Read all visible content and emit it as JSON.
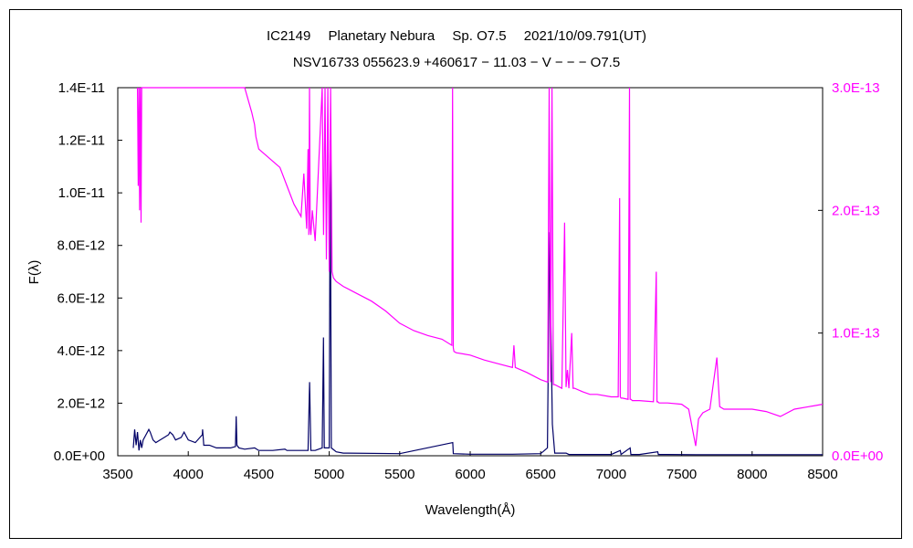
{
  "chart_data": {
    "type": "line",
    "title": "IC2149　 Planetary Nebura　 Sp. O7.5　 2021/10/09.791(UT)",
    "subtitle": "NSV16733 055623.9 +460617 − 11.03 − V − − − O7.5",
    "xlabel": "Wavelength(Å)",
    "ylabel": "F(λ)",
    "xlim": [
      3500,
      8500
    ],
    "ylim_left": [
      0,
      1.4e-11
    ],
    "ylim_right": [
      0,
      3e-13
    ],
    "x_ticks": [
      "3500",
      "4000",
      "4500",
      "5000",
      "5500",
      "6000",
      "6500",
      "7000",
      "7500",
      "8000",
      "8500"
    ],
    "y_left_ticks": [
      "0.0E+00",
      "2.0E-12",
      "4.0E-12",
      "6.0E-12",
      "8.0E-12",
      "1.0E-11",
      "1.2E-11",
      "1.4E-11"
    ],
    "y_right_ticks": [
      "0.0E+00",
      "1.0E-13",
      "2.0E-13",
      "3.0E-13"
    ],
    "grid": false,
    "series": [
      {
        "axis": "left",
        "color": "#000066",
        "x": [
          3610,
          3620,
          3630,
          3640,
          3650,
          3660,
          3670,
          3680,
          3700,
          3720,
          3730,
          3750,
          3770,
          3800,
          3830,
          3860,
          3870,
          3890,
          3910,
          3950,
          3970,
          4000,
          4050,
          4100,
          4102,
          4110,
          4150,
          4200,
          4300,
          4335,
          4340,
          4345,
          4360,
          4400,
          4471,
          4500,
          4600,
          4686,
          4700,
          4800,
          4850,
          4861,
          4870,
          4900,
          4950,
          4959,
          4965,
          5000,
          5007,
          5015,
          5050,
          5100,
          5500,
          5876,
          5880,
          6000,
          6300,
          6500,
          6548,
          6563,
          6583,
          6600,
          6680,
          6700,
          7000,
          7065,
          7070,
          7135,
          7140,
          7200,
          7330,
          7335,
          7400,
          7600,
          7800,
          8000,
          8200,
          8500
        ],
        "y": [
          3e-13,
          1e-12,
          4e-13,
          9e-13,
          2e-13,
          6e-13,
          3e-13,
          6e-13,
          8e-13,
          1e-12,
          9e-13,
          6e-13,
          5e-13,
          6e-13,
          7e-13,
          8e-13,
          9e-13,
          8e-13,
          6e-13,
          7e-13,
          9e-13,
          6e-13,
          5e-13,
          8e-13,
          1e-12,
          4e-13,
          4e-13,
          3e-13,
          3e-13,
          3.5e-13,
          1.5e-12,
          4e-13,
          3e-13,
          2.5e-13,
          3e-13,
          2e-13,
          2e-13,
          2.5e-13,
          2e-13,
          2e-13,
          2e-13,
          2.8e-12,
          2e-13,
          2e-13,
          3e-13,
          4.5e-12,
          3e-13,
          3e-13,
          1.2e-11,
          3e-13,
          1.5e-13,
          1e-13,
          8e-14,
          5e-13,
          8e-14,
          6e-14,
          6e-14,
          8e-14,
          3e-13,
          8.5e-12,
          1.2e-12,
          1e-13,
          1e-13,
          5e-14,
          5e-14,
          2e-13,
          5e-14,
          3e-13,
          5e-14,
          5e-14,
          1.5e-13,
          5e-14,
          5e-14,
          4e-14,
          4e-14,
          4e-14,
          4e-14,
          4e-14
        ]
      },
      {
        "axis": "right",
        "color": "#ff00ff",
        "x": [
          3640,
          3645,
          3650,
          3655,
          3660,
          3665,
          3670,
          4400,
          4450,
          4470,
          4480,
          4500,
          4600,
          4650,
          4700,
          4750,
          4800,
          4820,
          4840,
          4850,
          4855,
          4860,
          4865,
          4870,
          4880,
          4900,
          4950,
          4960,
          4970,
          4980,
          4990,
          5000,
          5010,
          5020,
          5030,
          5050,
          5100,
          5200,
          5300,
          5400,
          5500,
          5600,
          5700,
          5800,
          5870,
          5875,
          5880,
          5885,
          5900,
          6000,
          6100,
          6200,
          6300,
          6310,
          6320,
          6400,
          6500,
          6550,
          6560,
          6570,
          6580,
          6590,
          6600,
          6650,
          6670,
          6680,
          6690,
          6700,
          6720,
          6730,
          6740,
          6800,
          6850,
          6900,
          7000,
          7050,
          7060,
          7065,
          7070,
          7080,
          7120,
          7130,
          7135,
          7140,
          7150,
          7200,
          7300,
          7320,
          7325,
          7330,
          7340,
          7400,
          7500,
          7550,
          7600,
          7620,
          7650,
          7700,
          7750,
          7760,
          7770,
          7800,
          7900,
          8000,
          8100,
          8200,
          8300,
          8400,
          8500
        ],
        "y": [
          3e-13,
          2.2e-13,
          3e-13,
          2e-13,
          3e-13,
          1.9e-13,
          3e-13,
          3e-13,
          2.8e-13,
          2.7e-13,
          2.6e-13,
          2.5e-13,
          2.4e-13,
          2.35e-13,
          2.2e-13,
          2.05e-13,
          1.95e-13,
          2.3e-13,
          1.85e-13,
          2.5e-13,
          1.8e-13,
          3e-13,
          1.85e-13,
          1.8e-13,
          2e-13,
          1.75e-13,
          3e-13,
          1.8e-13,
          3e-13,
          1.6e-13,
          3e-13,
          1.5e-13,
          3e-13,
          1.5e-13,
          1.45e-13,
          1.42e-13,
          1.38e-13,
          1.32e-13,
          1.26e-13,
          1.18e-13,
          1.08e-13,
          1.02e-13,
          9.8e-14,
          9.5e-14,
          9e-14,
          3e-13,
          8.8e-14,
          8.5e-14,
          8.4e-14,
          8.2e-14,
          7.8e-14,
          7.5e-14,
          7.2e-14,
          9e-14,
          7.2e-14,
          6.8e-14,
          6.2e-14,
          6e-14,
          3e-13,
          6e-14,
          3e-13,
          5.8e-14,
          5.8e-14,
          5.5e-14,
          1.9e-13,
          5.6e-14,
          7e-14,
          5.5e-14,
          1e-13,
          5.5e-14,
          5.5e-14,
          5.2e-14,
          5e-14,
          5e-14,
          4.8e-14,
          4.8e-14,
          2.1e-13,
          4.8e-14,
          4.7e-14,
          4.7e-14,
          4.6e-14,
          3e-13,
          4.6e-14,
          4.6e-14,
          4.5e-14,
          4.5e-14,
          4.4e-14,
          1.5e-13,
          4.4e-14,
          4.4e-14,
          4.3e-14,
          4.3e-14,
          4.2e-14,
          3.8e-14,
          8e-15,
          3e-14,
          3.5e-14,
          3.8e-14,
          8e-14,
          6e-14,
          4e-14,
          3.8e-14,
          3.8e-14,
          3.8e-14,
          3.6e-14,
          3.2e-14,
          3.8e-14,
          4e-14,
          4.2e-14
        ]
      }
    ]
  }
}
